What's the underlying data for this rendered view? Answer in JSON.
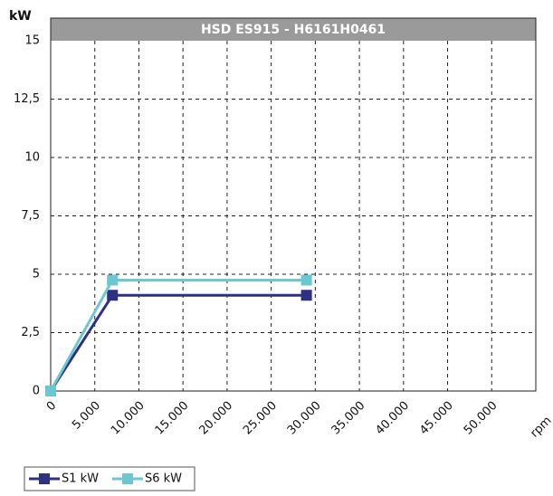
{
  "chart_data": {
    "type": "line",
    "title": "HSD ES915 - H6161H0461",
    "y_label": "kW",
    "x_label": "rpm",
    "x": [
      0,
      7000,
      29000
    ],
    "series": [
      {
        "name": "S1 kW",
        "color": "#2e3182",
        "values": [
          0,
          4.1,
          4.1
        ]
      },
      {
        "name": "S6 kW",
        "color": "#6cc7d0",
        "values": [
          0,
          4.75,
          4.75
        ]
      }
    ],
    "xlim": [
      0,
      55000
    ],
    "xticks": [
      0,
      {
        "value": 5000,
        "label": "5.000"
      },
      {
        "value": 10000,
        "label": "10.000"
      },
      {
        "value": 15000,
        "label": "15.000"
      },
      {
        "value": 20000,
        "label": "20.000"
      },
      {
        "value": 25000,
        "label": "25.000"
      },
      {
        "value": 30000,
        "label": "30.000"
      },
      {
        "value": 35000,
        "label": "35.000"
      },
      {
        "value": 40000,
        "label": "40.000"
      },
      {
        "value": 45000,
        "label": "45.000"
      },
      {
        "value": 50000,
        "label": "50.000"
      }
    ],
    "ylim": [
      0,
      15
    ],
    "yticks": [
      0,
      {
        "value": 2.5,
        "label": "2,5"
      },
      5,
      {
        "value": 7.5,
        "label": "7,5"
      },
      10,
      {
        "value": 12.5,
        "label": "12,5"
      },
      15
    ],
    "grid": true,
    "legend": "bottom-left"
  }
}
